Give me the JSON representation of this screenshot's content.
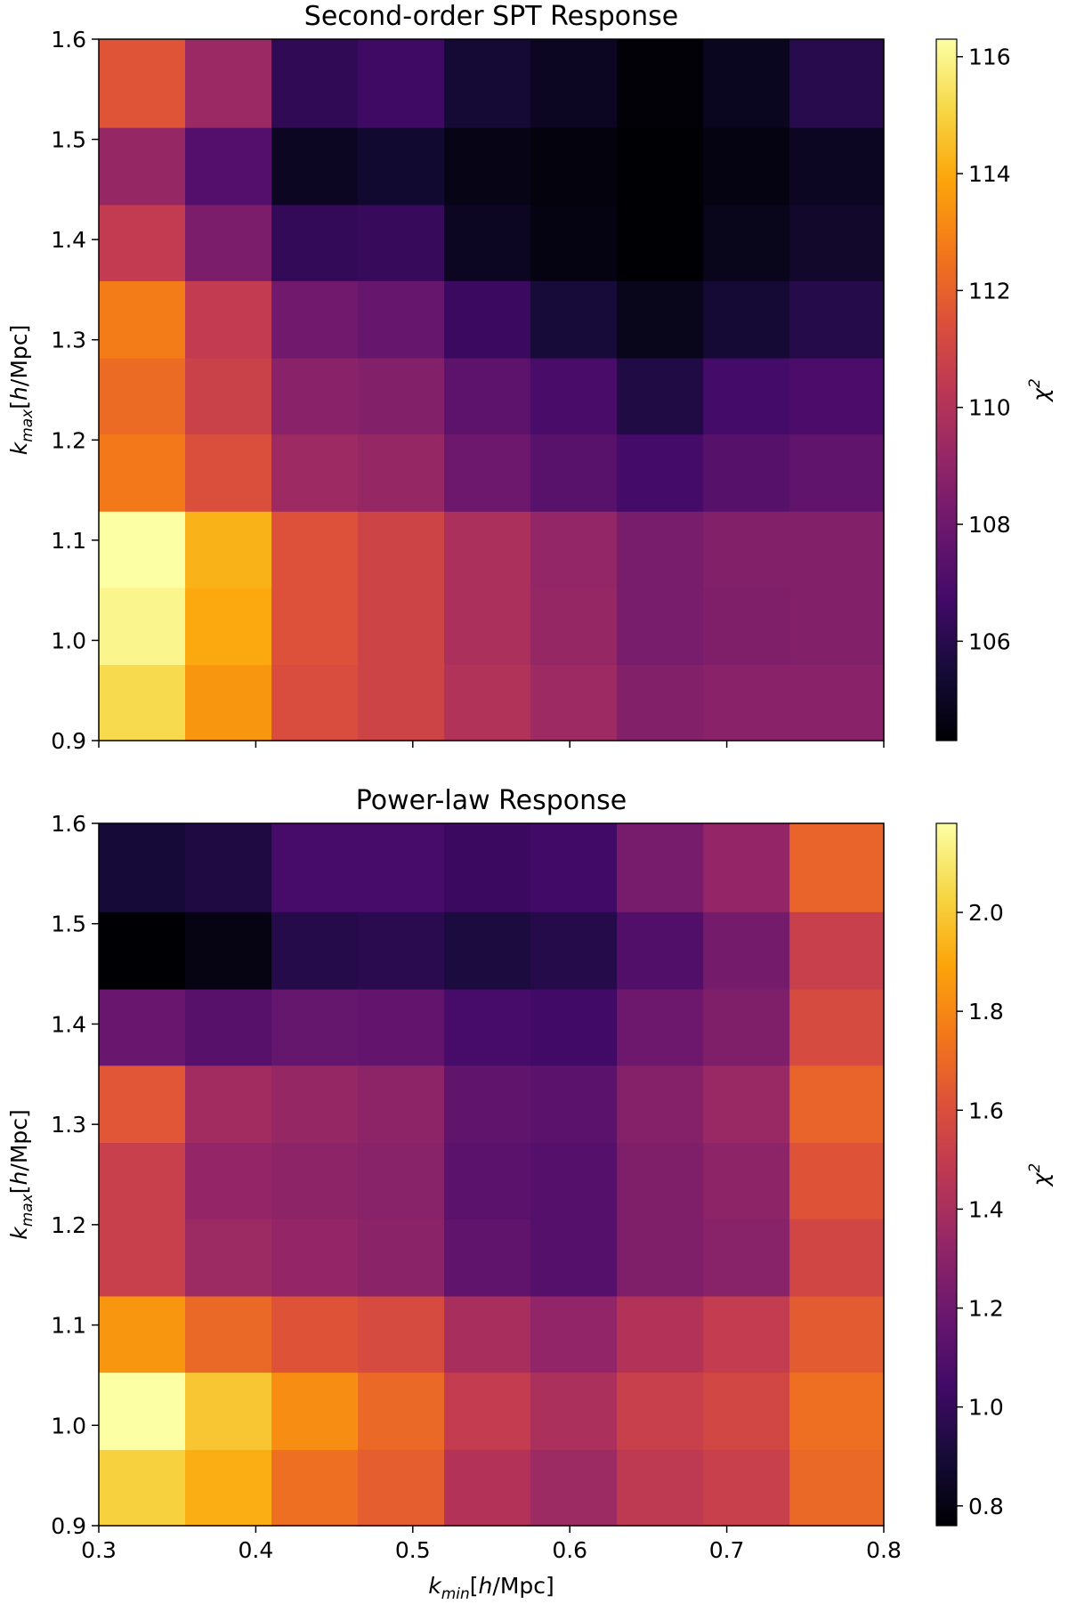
{
  "chart_data": [
    {
      "type": "heatmap",
      "title": "Second-order SPT Response",
      "colormap": "inferno",
      "x_edges": [
        0.3,
        0.355,
        0.41,
        0.465,
        0.52,
        0.575,
        0.63,
        0.685,
        0.74,
        0.8
      ],
      "y_edges": [
        0.9,
        0.976,
        1.053,
        1.129,
        1.206,
        1.282,
        1.359,
        1.435,
        1.512,
        1.6
      ],
      "x_ticks": [
        "0.3",
        "0.4",
        "0.5",
        "0.6",
        "0.7",
        "0.8"
      ],
      "y_ticks": [
        "0.9",
        "1.0",
        "1.1",
        "1.2",
        "1.3",
        "1.4",
        "1.5",
        "1.6"
      ],
      "xlim": [
        0.3,
        0.8
      ],
      "ylim": [
        0.9,
        1.6
      ],
      "ylabel": {
        "main": "k",
        "sub": "max",
        "unit_open": "[",
        "h": "h",
        "unit_close": "/Mpc]"
      },
      "colorbar": {
        "label": "χ",
        "label_sup": "2",
        "min": 104.3,
        "max": 116.3,
        "ticks": [
          "106",
          "108",
          "110",
          "112",
          "114",
          "116"
        ]
      },
      "values": [
        [
          115.2,
          113.5,
          111.3,
          110.9,
          110.0,
          109.4,
          108.6,
          108.8,
          108.8
        ],
        [
          116.0,
          114.0,
          111.5,
          110.9,
          109.8,
          109.2,
          108.3,
          108.5,
          108.6
        ],
        [
          116.3,
          114.2,
          111.5,
          110.9,
          109.8,
          109.1,
          108.3,
          108.6,
          108.6
        ],
        [
          112.7,
          111.4,
          109.4,
          109.2,
          108.0,
          107.4,
          106.8,
          107.3,
          107.6
        ],
        [
          112.3,
          110.8,
          108.8,
          108.6,
          107.5,
          106.9,
          105.8,
          106.8,
          107.0
        ],
        [
          112.8,
          110.5,
          108.1,
          107.8,
          106.5,
          105.5,
          104.8,
          105.4,
          105.9
        ],
        [
          110.5,
          108.4,
          106.3,
          106.4,
          105.0,
          104.6,
          104.3,
          104.8,
          105.2
        ],
        [
          109.2,
          107.2,
          105.0,
          105.3,
          104.7,
          104.5,
          104.3,
          104.6,
          105.0
        ],
        [
          111.6,
          109.3,
          106.2,
          106.6,
          105.4,
          105.0,
          104.4,
          104.9,
          106.0
        ]
      ]
    },
    {
      "type": "heatmap",
      "title": "Power-law Response",
      "colormap": "inferno",
      "x_edges": [
        0.3,
        0.355,
        0.41,
        0.465,
        0.52,
        0.575,
        0.63,
        0.685,
        0.74,
        0.8
      ],
      "y_edges": [
        0.9,
        0.976,
        1.053,
        1.129,
        1.206,
        1.282,
        1.359,
        1.435,
        1.512,
        1.6
      ],
      "x_ticks": [
        "0.3",
        "0.4",
        "0.5",
        "0.6",
        "0.7",
        "0.8"
      ],
      "y_ticks": [
        "0.9",
        "1.0",
        "1.1",
        "1.2",
        "1.3",
        "1.4",
        "1.5",
        "1.6"
      ],
      "xlim": [
        0.3,
        0.8
      ],
      "ylim": [
        0.9,
        1.6
      ],
      "xlabel": {
        "main": "k",
        "sub": "min",
        "unit_open": "[",
        "h": "h",
        "unit_close": "/Mpc]"
      },
      "ylabel": {
        "main": "k",
        "sub": "max",
        "unit_open": "[",
        "h": "h",
        "unit_close": "/Mpc]"
      },
      "colorbar": {
        "label": "χ",
        "label_sup": "2",
        "min": 0.76,
        "max": 2.18,
        "ticks": [
          "0.8",
          "1.0",
          "1.2",
          "1.4",
          "1.6",
          "1.8",
          "2.0"
        ]
      },
      "values": [
        [
          2.02,
          1.92,
          1.72,
          1.66,
          1.44,
          1.36,
          1.48,
          1.52,
          1.7
        ],
        [
          2.18,
          1.99,
          1.82,
          1.7,
          1.5,
          1.41,
          1.52,
          1.56,
          1.72
        ],
        [
          1.85,
          1.7,
          1.62,
          1.58,
          1.4,
          1.32,
          1.44,
          1.5,
          1.65
        ],
        [
          1.52,
          1.36,
          1.33,
          1.3,
          1.15,
          1.11,
          1.26,
          1.29,
          1.55
        ],
        [
          1.52,
          1.33,
          1.31,
          1.29,
          1.13,
          1.11,
          1.26,
          1.31,
          1.62
        ],
        [
          1.63,
          1.38,
          1.34,
          1.31,
          1.15,
          1.13,
          1.28,
          1.35,
          1.68
        ],
        [
          1.18,
          1.12,
          1.17,
          1.16,
          1.06,
          1.04,
          1.2,
          1.26,
          1.58
        ],
        [
          0.76,
          0.8,
          0.95,
          0.97,
          0.92,
          0.95,
          1.1,
          1.22,
          1.52
        ],
        [
          0.9,
          0.93,
          1.06,
          1.06,
          1.02,
          1.04,
          1.23,
          1.33,
          1.68
        ]
      ]
    }
  ]
}
